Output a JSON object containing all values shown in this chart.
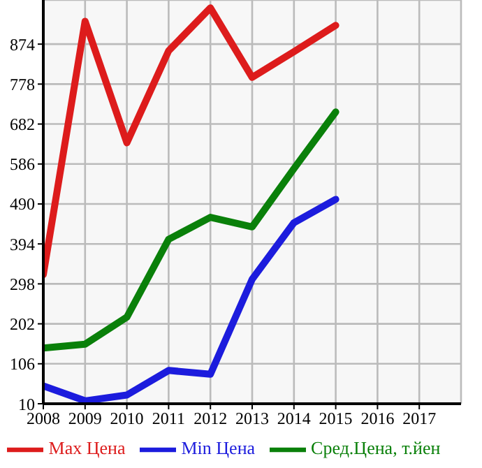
{
  "chart_data": {
    "type": "line",
    "xlim": [
      2008,
      2018
    ],
    "xticks": [
      2008,
      2009,
      2010,
      2011,
      2012,
      2013,
      2014,
      2015,
      2016,
      2017
    ],
    "ylim": [
      10,
      980
    ],
    "yticks": [
      10,
      106,
      202,
      298,
      394,
      490,
      586,
      682,
      778,
      874
    ],
    "grid": true,
    "legend": "bottom",
    "marker": "none",
    "line_style": "solid",
    "x": [
      2008,
      2009,
      2010,
      2011,
      2012,
      2013,
      2014,
      2015
    ],
    "series": [
      {
        "name": "Max Цена",
        "color": "#dd1c1c",
        "values": [
          320,
          929,
          637,
          858,
          961,
          794,
          856,
          919
        ]
      },
      {
        "name": "Min Цена",
        "color": "#1c1cdd",
        "values": [
          53,
          17,
          31,
          90,
          81,
          309,
          445,
          501
        ]
      },
      {
        "name": "Сред.Цена, т.йен",
        "color": "#0a800a",
        "values": [
          144,
          153,
          218,
          405,
          458,
          435,
          575,
          711
        ]
      }
    ]
  }
}
